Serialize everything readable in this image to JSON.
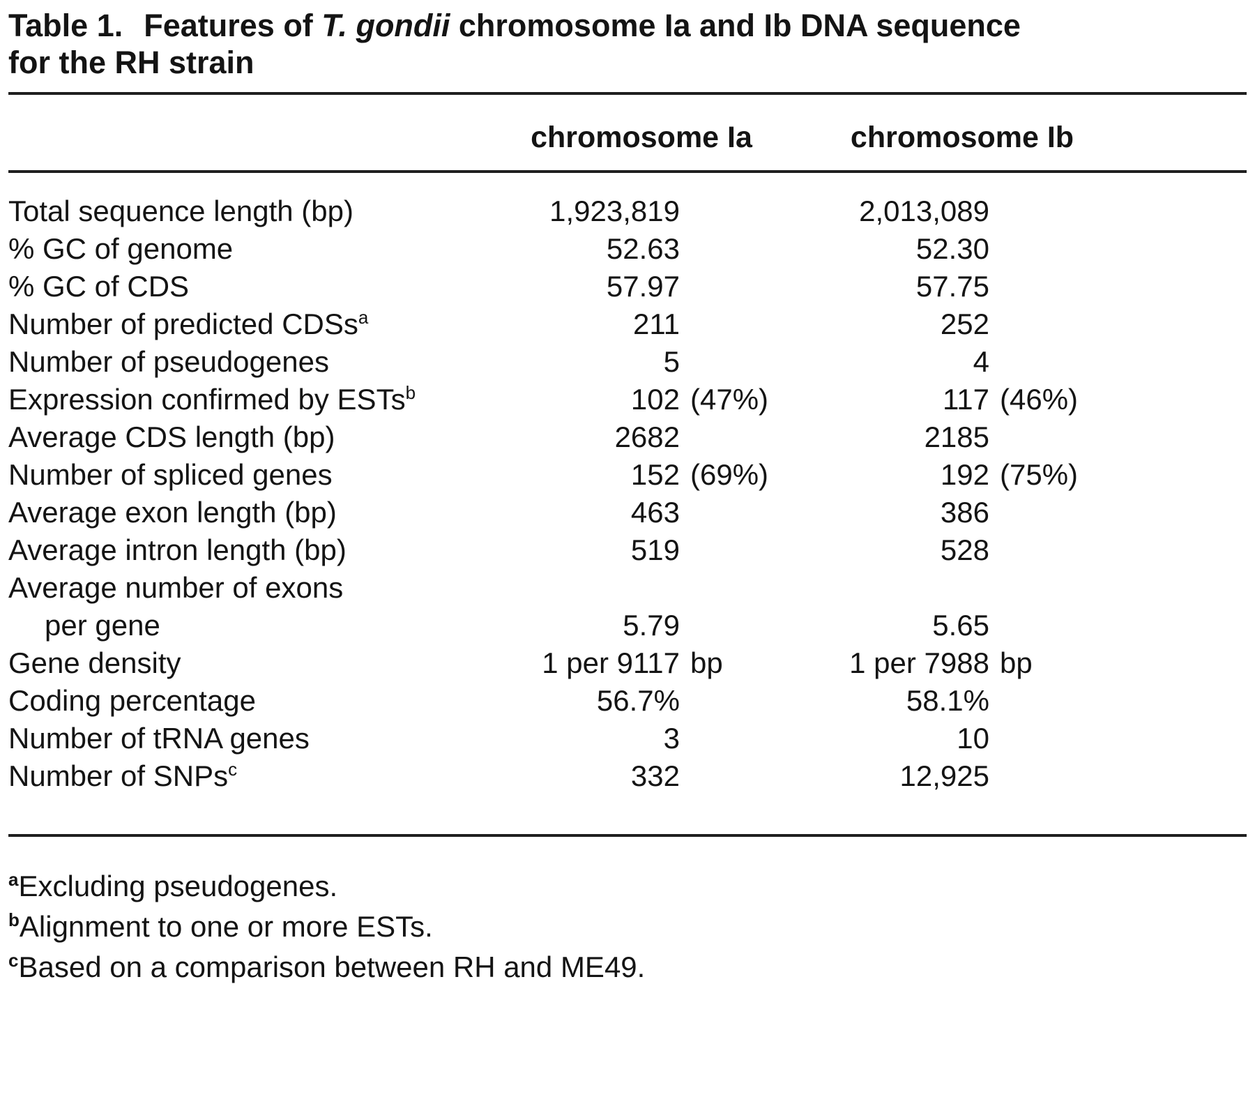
{
  "title": {
    "table_label": "Table 1.",
    "text_before_species": "Features of ",
    "species": "T. gondii",
    "text_after_species": " chromosome Ia and Ib DNA sequence for the RH strain"
  },
  "columns": {
    "ia": "chromosome Ia",
    "ib": "chromosome Ib"
  },
  "rows": [
    {
      "label": "Total sequence length (bp)",
      "sup": "",
      "ia": "1,923,819",
      "iax": "",
      "ib": "2,013,089",
      "ibx": ""
    },
    {
      "label": "% GC of genome",
      "sup": "",
      "ia": "52.63",
      "iax": "",
      "ib": "52.30",
      "ibx": ""
    },
    {
      "label": "% GC of CDS",
      "sup": "",
      "ia": "57.97",
      "iax": "",
      "ib": "57.75",
      "ibx": ""
    },
    {
      "label": "Number of predicted CDSs",
      "sup": "a",
      "ia": "211",
      "iax": "",
      "ib": "252",
      "ibx": ""
    },
    {
      "label": "Number of pseudogenes",
      "sup": "",
      "ia": "5",
      "iax": "",
      "ib": "4",
      "ibx": ""
    },
    {
      "label": "Expression confirmed by ESTs",
      "sup": "b",
      "ia": "102",
      "iax": "(47%)",
      "ib": "117",
      "ibx": "(46%)"
    },
    {
      "label": "Average CDS length (bp)",
      "sup": "",
      "ia": "2682",
      "iax": "",
      "ib": "2185",
      "ibx": ""
    },
    {
      "label": "Number of spliced genes",
      "sup": "",
      "ia": "152",
      "iax": "(69%)",
      "ib": "192",
      "ibx": "(75%)"
    },
    {
      "label": "Average exon length (bp)",
      "sup": "",
      "ia": "463",
      "iax": "",
      "ib": "386",
      "ibx": ""
    },
    {
      "label": "Average intron length (bp)",
      "sup": "",
      "ia": "519",
      "iax": "",
      "ib": "528",
      "ibx": ""
    },
    {
      "label": "Average number of exons",
      "sup": "",
      "ia": "",
      "iax": "",
      "ib": "",
      "ibx": ""
    },
    {
      "label": "per gene",
      "sup": "",
      "ia": "5.79",
      "iax": "",
      "ib": "5.65",
      "ibx": ""
    },
    {
      "label": "Gene density",
      "sup": "",
      "ia": "1 per 9117",
      "iax": "bp",
      "ib": "1 per 7988",
      "ibx": "bp"
    },
    {
      "label": "Coding percentage",
      "sup": "",
      "ia": "56.7%",
      "iax": "",
      "ib": "58.1%",
      "ibx": ""
    },
    {
      "label": "Number of tRNA genes",
      "sup": "",
      "ia": "3",
      "iax": "",
      "ib": "10",
      "ibx": ""
    },
    {
      "label": "Number of SNPs",
      "sup": "c",
      "ia": "332",
      "iax": "",
      "ib": "12,925",
      "ibx": ""
    }
  ],
  "footnotes": [
    {
      "marker": "a",
      "text": "Excluding pseudogenes."
    },
    {
      "marker": "b",
      "text": "Alignment to one or more ESTs."
    },
    {
      "marker": "c",
      "text": "Based on a comparison between RH and ME49."
    }
  ]
}
